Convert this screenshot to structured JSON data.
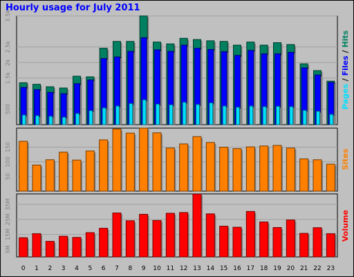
{
  "chart_data": [
    {
      "type": "bar",
      "title": "Hourly usage for July 2011",
      "categories": [
        "0",
        "1",
        "2",
        "3",
        "4",
        "5",
        "6",
        "7",
        "8",
        "9",
        "10",
        "11",
        "12",
        "13",
        "14",
        "15",
        "16",
        "17",
        "18",
        "19",
        "20",
        "21",
        "22",
        "23"
      ],
      "legend": [
        {
          "text": "Pages",
          "color": "#00e0ff"
        },
        {
          "text": " / ",
          "color": "#000000"
        },
        {
          "text": "Files",
          "color": "#0000ff"
        },
        {
          "text": " / ",
          "color": "#000000"
        },
        {
          "text": "Hits",
          "color": "#008060"
        }
      ],
      "legend_position": "right, vertical",
      "y_tick_labels": [
        "500",
        "1.5k",
        "2k",
        "2.5k",
        "3.5k"
      ],
      "ylim": [
        0,
        3500
      ],
      "grid": true,
      "series": [
        {
          "name": "Hits",
          "color": "#008060",
          "values": [
            1350,
            1300,
            1220,
            1180,
            1560,
            1540,
            2460,
            2680,
            2680,
            3500,
            2660,
            2600,
            2780,
            2740,
            2700,
            2680,
            2560,
            2660,
            2560,
            2640,
            2580,
            1960,
            1740,
            1400
          ]
        },
        {
          "name": "Files",
          "color": "#0000ff",
          "values": [
            1200,
            1130,
            1040,
            1000,
            1320,
            1440,
            2130,
            2180,
            2360,
            2800,
            2410,
            2360,
            2560,
            2460,
            2420,
            2350,
            2230,
            2390,
            2280,
            2280,
            2330,
            1830,
            1600,
            1360
          ]
        },
        {
          "name": "Pages",
          "color": "#00e0ff",
          "values": [
            310,
            290,
            270,
            240,
            360,
            450,
            540,
            600,
            680,
            800,
            660,
            640,
            720,
            650,
            700,
            600,
            560,
            600,
            580,
            590,
            580,
            460,
            430,
            330
          ]
        }
      ]
    },
    {
      "type": "bar",
      "categories": [
        "0",
        "1",
        "2",
        "3",
        "4",
        "5",
        "6",
        "7",
        "8",
        "9",
        "10",
        "11",
        "12",
        "13",
        "14",
        "15",
        "16",
        "17",
        "18",
        "19",
        "20",
        "21",
        "22",
        "23"
      ],
      "legend": [
        {
          "text": "Sites",
          "color": "#ff8000"
        }
      ],
      "y_tick_labels": [
        "50",
        "100",
        "150"
      ],
      "ylim": [
        0,
        215
      ],
      "grid": true,
      "series": [
        {
          "name": "Sites",
          "color": "#ff8000",
          "values": [
            170,
            89,
            107,
            133,
            106,
            137,
            175,
            212,
            198,
            215,
            199,
            147,
            161,
            186,
            166,
            150,
            145,
            151,
            154,
            156,
            147,
            110,
            107,
            92
          ]
        }
      ]
    },
    {
      "type": "bar",
      "categories": [
        "0",
        "1",
        "2",
        "3",
        "4",
        "5",
        "6",
        "7",
        "8",
        "9",
        "10",
        "11",
        "12",
        "13",
        "14",
        "15",
        "16",
        "17",
        "18",
        "19",
        "20",
        "21",
        "22",
        "23"
      ],
      "legend": [
        {
          "text": "Volume",
          "color": "#ff0000"
        }
      ],
      "y_tick_labels": [
        "5M",
        "15M",
        "25M",
        "35M"
      ],
      "ylim": [
        0,
        42
      ],
      "grid": true,
      "series": [
        {
          "name": "Volume",
          "color": "#ff0000",
          "values": [
            12.8,
            15.5,
            10.4,
            13.8,
            13.0,
            16.2,
            19.1,
            29.3,
            24.1,
            28.4,
            24.3,
            29.1,
            29.6,
            41.9,
            28.7,
            20.5,
            19.8,
            30.3,
            23.3,
            19.6,
            24.6,
            15.7,
            19.5,
            15.5
          ]
        }
      ]
    }
  ]
}
